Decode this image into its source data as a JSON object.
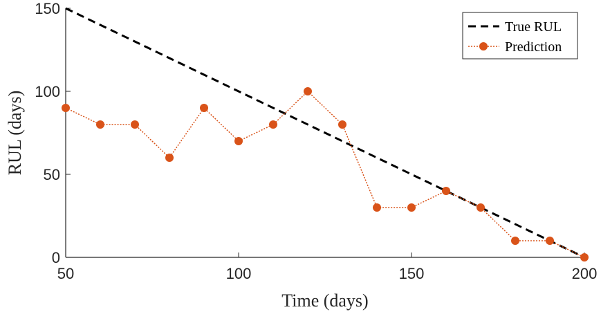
{
  "chart_data": {
    "type": "line",
    "title": "",
    "xlabel": "Time (days)",
    "ylabel": "RUL (days)",
    "xlim": [
      50,
      200
    ],
    "ylim": [
      0,
      150
    ],
    "xticks": [
      50,
      100,
      150,
      200
    ],
    "yticks": [
      0,
      50,
      100,
      150
    ],
    "grid": false,
    "legend_position": "top-right",
    "series": [
      {
        "name": "True RUL",
        "style": "dashed",
        "color": "#000000",
        "x": [
          50,
          200
        ],
        "y": [
          150,
          0
        ]
      },
      {
        "name": "Prediction",
        "style": "dotted-markers",
        "color": "#D95319",
        "x": [
          50,
          60,
          70,
          80,
          90,
          100,
          110,
          120,
          130,
          140,
          150,
          160,
          170,
          180,
          190,
          200
        ],
        "y": [
          90,
          80,
          80,
          60,
          90,
          70,
          80,
          100,
          80,
          30,
          30,
          40,
          30,
          10,
          10,
          0
        ]
      }
    ]
  }
}
